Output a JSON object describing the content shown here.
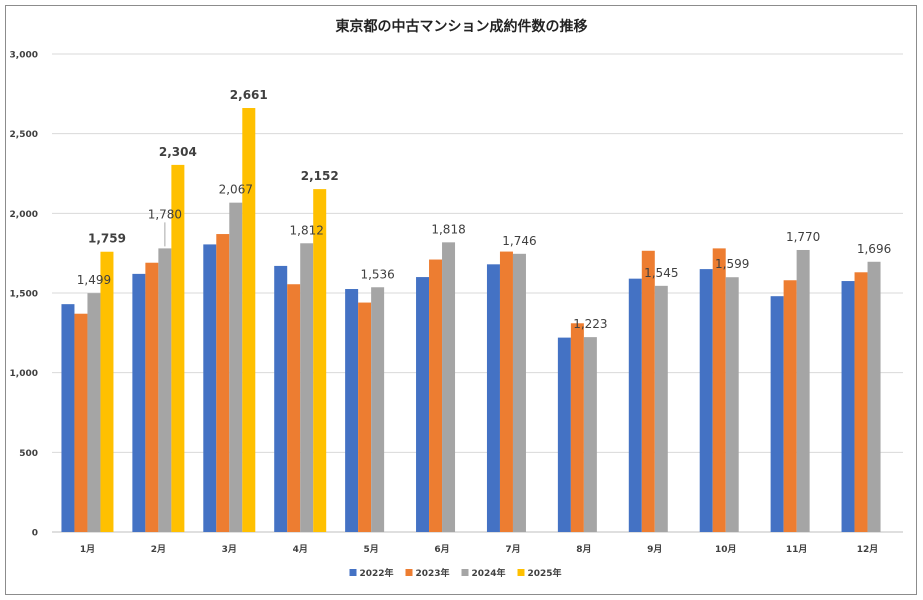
{
  "chart_data": {
    "type": "bar",
    "title": "東京都の中古マンション成約件数の推移",
    "categories": [
      "1月",
      "2月",
      "3月",
      "4月",
      "5月",
      "6月",
      "7月",
      "8月",
      "9月",
      "10月",
      "11月",
      "12月"
    ],
    "ylim": [
      0,
      3000
    ],
    "yticks": [
      "0",
      "500",
      "1,000",
      "1,500",
      "2,000",
      "2,500",
      "3,000"
    ],
    "ytick_values": [
      0,
      500,
      1000,
      1500,
      2000,
      2500,
      3000
    ],
    "grid": true,
    "legend_position": "bottom",
    "series": [
      {
        "name": "2022年",
        "color": "#4472c4",
        "values": [
          1430,
          1620,
          1805,
          1670,
          1525,
          1600,
          1680,
          1220,
          1590,
          1650,
          1480,
          1575
        ]
      },
      {
        "name": "2023年",
        "color": "#ed7d31",
        "values": [
          1370,
          1690,
          1870,
          1555,
          1440,
          1710,
          1760,
          1310,
          1765,
          1780,
          1580,
          1630
        ]
      },
      {
        "name": "2024年",
        "color": "#a5a5a5",
        "values": [
          1499,
          1780,
          2067,
          1812,
          1536,
          1818,
          1746,
          1223,
          1545,
          1599,
          1770,
          1696
        ]
      },
      {
        "name": "2025年",
        "color": "#ffc000",
        "values": [
          1759,
          2304,
          2661,
          2152,
          null,
          null,
          null,
          null,
          null,
          null,
          null,
          null
        ]
      }
    ],
    "data_labels": {
      "2024年": [
        "1,499",
        "1,780",
        "2,067",
        "1,812",
        "1,536",
        "1,818",
        "1,746",
        "1,223",
        "1,545",
        "1,599",
        "1,770",
        "1,696"
      ],
      "2025年": [
        "1,759",
        "2,304",
        "2,661",
        "2,152",
        "",
        "",
        "",
        "",
        "",
        "",
        "",
        ""
      ]
    }
  }
}
